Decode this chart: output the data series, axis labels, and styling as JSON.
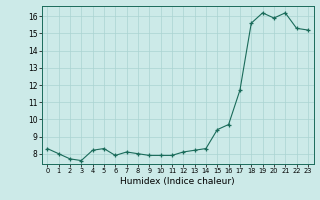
{
  "x": [
    0,
    1,
    2,
    3,
    4,
    5,
    6,
    7,
    8,
    9,
    10,
    11,
    12,
    13,
    14,
    15,
    16,
    17,
    18,
    19,
    20,
    21,
    22,
    23
  ],
  "y": [
    8.3,
    8.0,
    7.7,
    7.6,
    8.2,
    8.3,
    7.9,
    8.1,
    8.0,
    7.9,
    7.9,
    7.9,
    8.1,
    8.2,
    8.3,
    9.4,
    9.7,
    11.7,
    15.6,
    16.2,
    15.9,
    16.2,
    15.3,
    15.2
  ],
  "line_color": "#1a6b5a",
  "marker_color": "#1a6b5a",
  "bg_color": "#cceae8",
  "grid_color": "#aad4d2",
  "xlabel": "Humidex (Indice chaleur)",
  "xlim": [
    -0.5,
    23.5
  ],
  "ylim": [
    7.4,
    16.6
  ],
  "yticks": [
    8,
    9,
    10,
    11,
    12,
    13,
    14,
    15,
    16
  ],
  "xticks": [
    0,
    1,
    2,
    3,
    4,
    5,
    6,
    7,
    8,
    9,
    10,
    11,
    12,
    13,
    14,
    15,
    16,
    17,
    18,
    19,
    20,
    21,
    22,
    23
  ],
  "label_fontsize": 6.5,
  "tick_fontsize": 5.5
}
